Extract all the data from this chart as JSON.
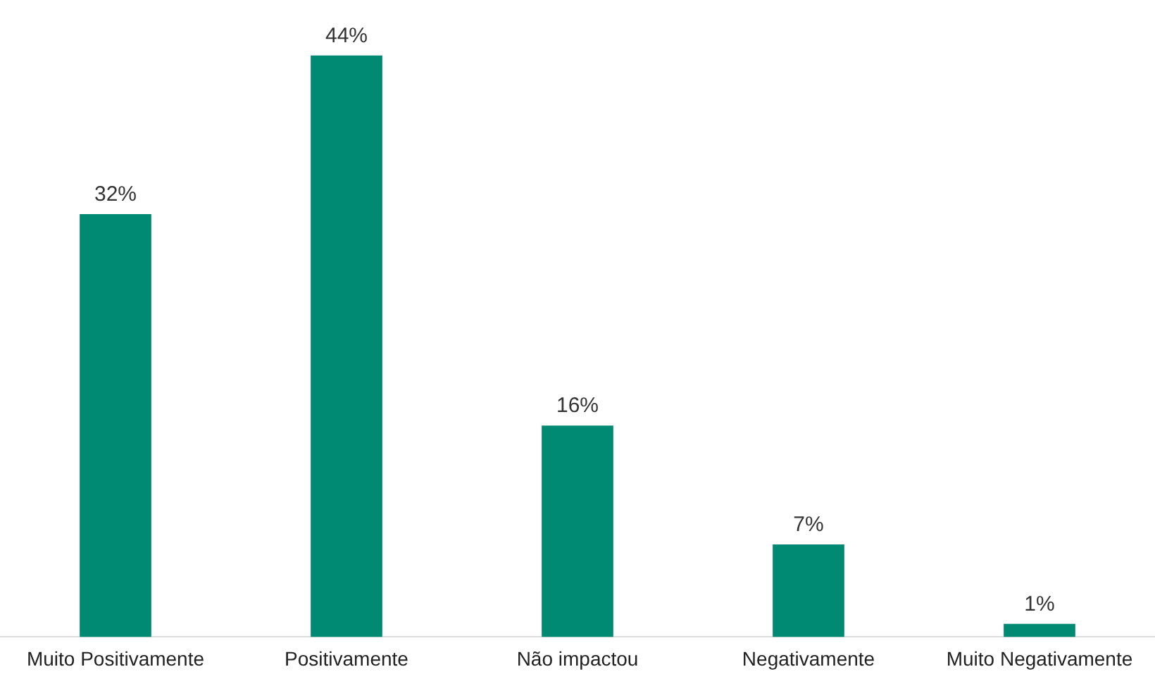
{
  "chart_data": {
    "type": "bar",
    "categories": [
      "Muito Positivamente",
      "Positivamente",
      "Não impactou",
      "Negativamente",
      "Muito Negativamente"
    ],
    "values": [
      32,
      44,
      16,
      7,
      1
    ],
    "value_labels": [
      "32%",
      "44%",
      "16%",
      "7%",
      "1%"
    ],
    "color": "#008a74",
    "grid": false,
    "legend": false
  }
}
